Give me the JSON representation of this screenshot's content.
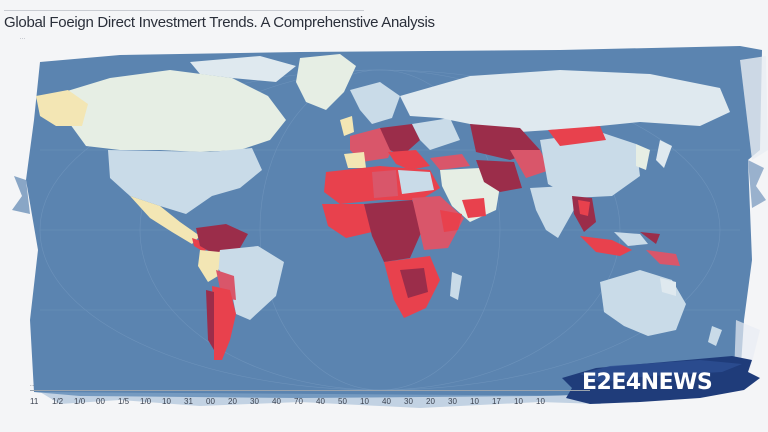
{
  "header": {
    "title": "Global Foeign Direct Investmert Trends. A Comprehenstive Analysis",
    "subtitle": "..."
  },
  "axis": {
    "caption": "...",
    "ticks": [
      "11",
      "1/2",
      "1/0",
      "00",
      "1/5",
      "1/0",
      "10",
      "31",
      "00",
      "20",
      "30",
      "40",
      "70",
      "40",
      "50",
      "10",
      "40",
      "30",
      "20",
      "30",
      "10",
      "17",
      "10",
      "10"
    ]
  },
  "brand": {
    "name": "E2E4NEWS"
  },
  "colors": {
    "ocean": "#5b84b0",
    "land_light": "#c9dbe8",
    "land_pale": "#e6eee4",
    "land_cream": "#f3e6b4",
    "fdi_high": "#e8414d",
    "fdi_very_high": "#9b2d4a",
    "fdi_mid": "#d9566a",
    "brand_bg": "#1f3c7a"
  }
}
